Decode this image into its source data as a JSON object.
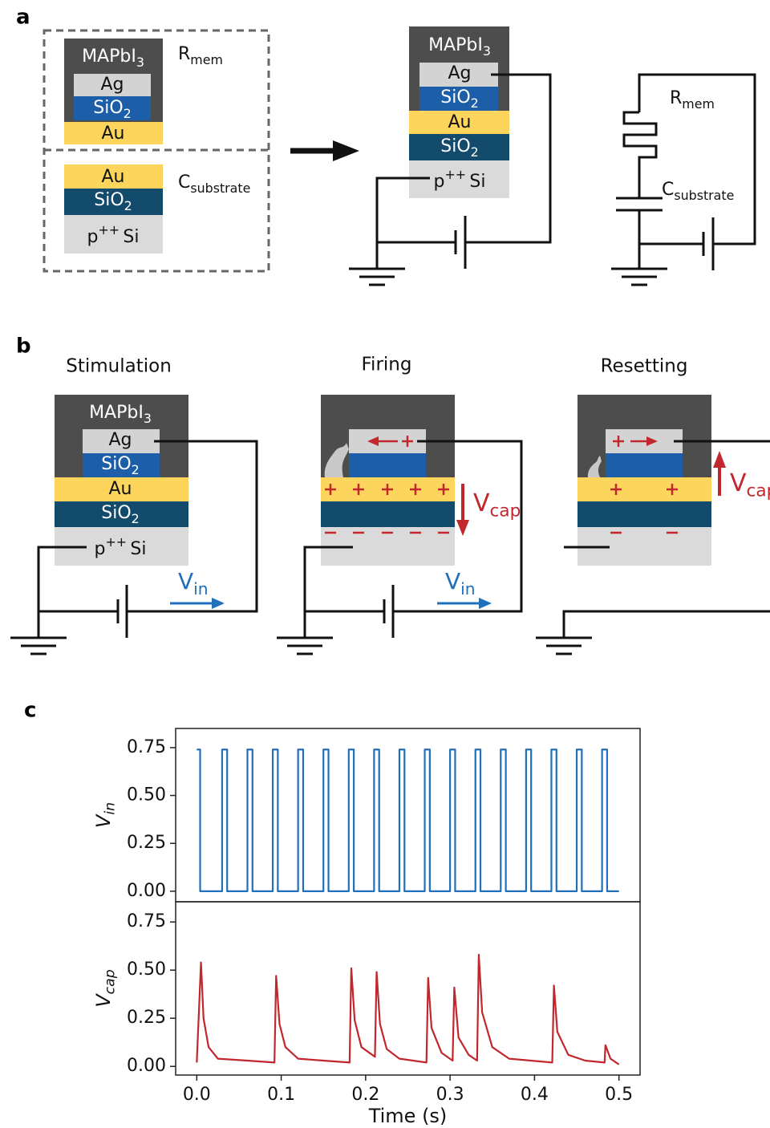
{
  "panel_labels": [
    "a",
    "b",
    "c"
  ],
  "panel_a": {
    "memristor": {
      "top": {
        "base": "MAPbI",
        "sub": "3"
      },
      "electrode": "Ag",
      "oxide": {
        "base": "SiO",
        "sub": "2"
      },
      "bottom": "Au",
      "label": {
        "base": "R",
        "sub": "mem"
      }
    },
    "capacitor": {
      "top": "Au",
      "oxide": {
        "base": "SiO",
        "sub": "2"
      },
      "bottom": {
        "base": "p",
        "sup": "++",
        "rest": "Si"
      },
      "label": {
        "base": "C",
        "sub": "substrate"
      }
    },
    "device": {
      "top": {
        "base": "MAPbI",
        "sub": "3"
      },
      "electrode": "Ag",
      "oxide": {
        "base": "SiO",
        "sub": "2"
      },
      "middle": "Au",
      "oxide2": {
        "base": "SiO",
        "sub": "2"
      },
      "bottom": {
        "base": "p",
        "sup": "++",
        "rest": "Si"
      }
    },
    "circuit": {
      "r_label": {
        "base": "R",
        "sub": "mem"
      },
      "c_label": {
        "base": "C",
        "sub": "substrate"
      }
    }
  },
  "panel_b": {
    "stimulation": {
      "title": "Stimulation",
      "top": {
        "base": "MAPbI",
        "sub": "3"
      },
      "electrode": "Ag",
      "oxide": {
        "base": "SiO",
        "sub": "2"
      },
      "middle": "Au",
      "oxide2": {
        "base": "SiO",
        "sub": "2"
      },
      "bottom": {
        "base": "p",
        "sup": "++",
        "rest": "Si"
      },
      "input": {
        "base": "V",
        "sub": "in"
      }
    },
    "firing": {
      "title": "Firing",
      "input": {
        "base": "V",
        "sub": "in"
      },
      "output": {
        "base": "V",
        "sub": "cap"
      }
    },
    "resetting": {
      "title": "Resetting",
      "output": {
        "base": "V",
        "sub": "cap"
      }
    }
  },
  "chart_data": [
    {
      "type": "line",
      "ylabel": {
        "base": "V",
        "sub": "in"
      },
      "color": "#1f6fbb",
      "xlim": [
        -0.025,
        0.525
      ],
      "ylim": [
        -0.055,
        0.85
      ],
      "yticks": [
        {
          "value": 0,
          "label": "0.00"
        },
        {
          "value": 0.25,
          "label": "0.25"
        },
        {
          "value": 0.5,
          "label": "0.50"
        },
        {
          "value": 0.75,
          "label": "0.75"
        }
      ],
      "x": [
        0,
        0.004,
        0.004,
        0.03,
        0.03,
        0.036,
        0.036,
        0.06,
        0.06,
        0.066,
        0.066,
        0.09,
        0.09,
        0.096,
        0.096,
        0.12,
        0.12,
        0.126,
        0.126,
        0.15,
        0.15,
        0.156,
        0.156,
        0.18,
        0.18,
        0.186,
        0.186,
        0.21,
        0.21,
        0.216,
        0.216,
        0.24,
        0.24,
        0.246,
        0.246,
        0.27,
        0.27,
        0.276,
        0.276,
        0.3,
        0.3,
        0.306,
        0.306,
        0.33,
        0.33,
        0.336,
        0.336,
        0.36,
        0.36,
        0.366,
        0.366,
        0.39,
        0.39,
        0.396,
        0.396,
        0.42,
        0.42,
        0.426,
        0.426,
        0.45,
        0.45,
        0.456,
        0.456,
        0.48,
        0.48,
        0.486,
        0.486,
        0.5
      ],
      "values": [
        0.74,
        0.74,
        0,
        0,
        0.74,
        0.74,
        0,
        0,
        0.74,
        0.74,
        0,
        0,
        0.74,
        0.74,
        0,
        0,
        0.74,
        0.74,
        0,
        0,
        0.74,
        0.74,
        0,
        0,
        0.74,
        0.74,
        0,
        0,
        0.74,
        0.74,
        0,
        0,
        0.74,
        0.74,
        0,
        0,
        0.74,
        0.74,
        0,
        0,
        0.74,
        0.74,
        0,
        0,
        0.74,
        0.74,
        0,
        0,
        0.74,
        0.74,
        0,
        0,
        0.74,
        0.74,
        0,
        0,
        0.74,
        0.74,
        0,
        0,
        0.74,
        0.74,
        0,
        0,
        0.74,
        0.74,
        0,
        0
      ]
    },
    {
      "type": "line",
      "ylabel": {
        "base": "V",
        "sub": "cap"
      },
      "xlabel": "Time (s)",
      "color": "#c1272d",
      "xlim": [
        -0.025,
        0.525
      ],
      "ylim": [
        -0.045,
        0.855
      ],
      "xticks": [
        {
          "value": 0,
          "label": "0.0"
        },
        {
          "value": 0.1,
          "label": "0.1"
        },
        {
          "value": 0.2,
          "label": "0.2"
        },
        {
          "value": 0.3,
          "label": "0.3"
        },
        {
          "value": 0.4,
          "label": "0.4"
        },
        {
          "value": 0.5,
          "label": "0.5"
        }
      ],
      "yticks": [
        {
          "value": 0,
          "label": "0.00"
        },
        {
          "value": 0.25,
          "label": "0.25"
        },
        {
          "value": 0.5,
          "label": "0.50"
        },
        {
          "value": 0.75,
          "label": "0.75"
        }
      ],
      "x": [
        0,
        0.005,
        0.008,
        0.014,
        0.025,
        0.06,
        0.092,
        0.094,
        0.098,
        0.105,
        0.12,
        0.15,
        0.181,
        0.183,
        0.187,
        0.195,
        0.211,
        0.213,
        0.217,
        0.225,
        0.24,
        0.272,
        0.274,
        0.278,
        0.29,
        0.303,
        0.305,
        0.31,
        0.322,
        0.332,
        0.334,
        0.338,
        0.35,
        0.37,
        0.421,
        0.423,
        0.427,
        0.44,
        0.46,
        0.483,
        0.484,
        0.49,
        0.5
      ],
      "values": [
        0.02,
        0.54,
        0.25,
        0.1,
        0.04,
        0.03,
        0.02,
        0.47,
        0.22,
        0.1,
        0.04,
        0.03,
        0.02,
        0.51,
        0.24,
        0.1,
        0.05,
        0.49,
        0.22,
        0.09,
        0.04,
        0.02,
        0.46,
        0.2,
        0.07,
        0.03,
        0.41,
        0.15,
        0.06,
        0.03,
        0.58,
        0.28,
        0.1,
        0.04,
        0.02,
        0.42,
        0.18,
        0.06,
        0.03,
        0.02,
        0.11,
        0.04,
        0.01
      ]
    }
  ]
}
